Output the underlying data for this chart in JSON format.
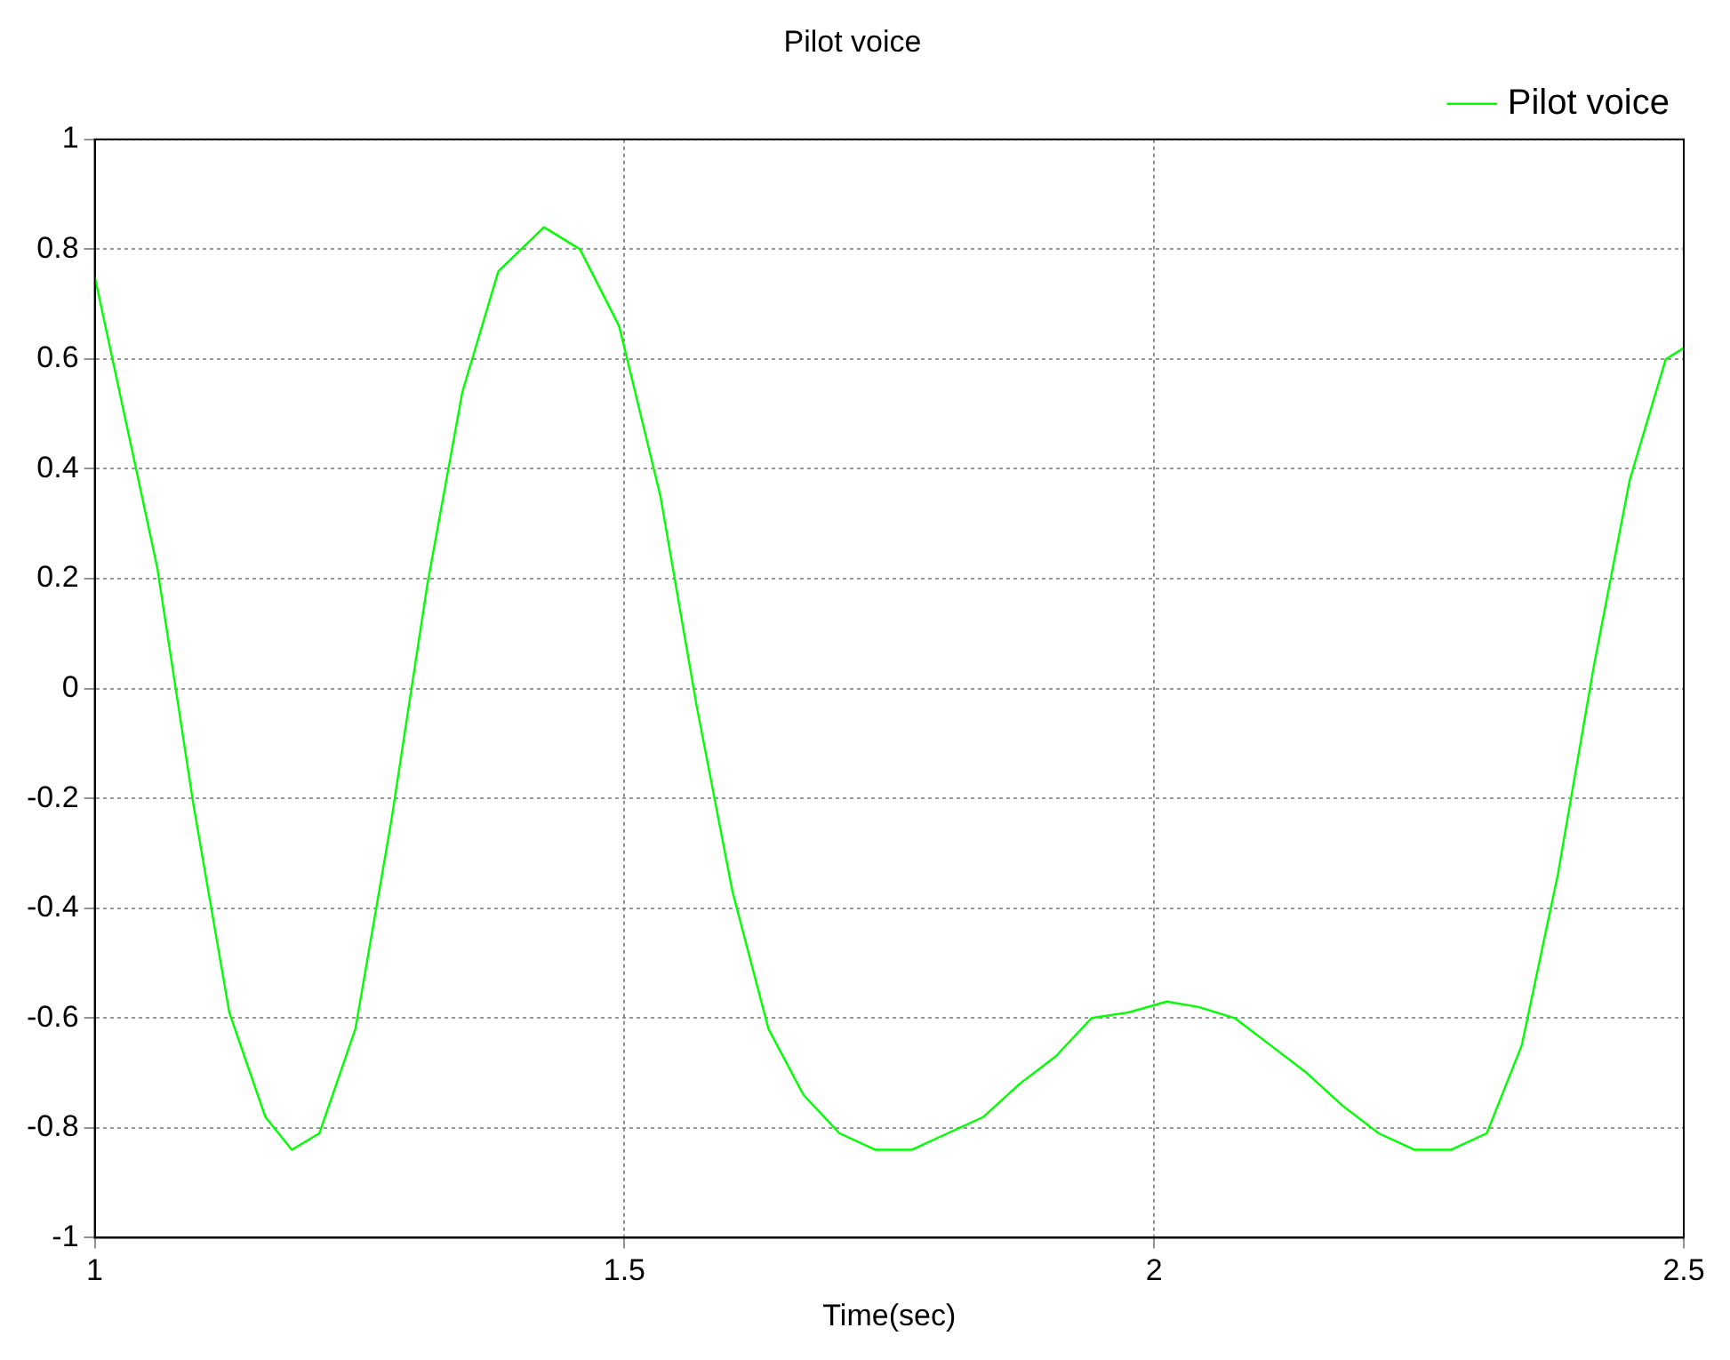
{
  "chart_data": {
    "type": "line",
    "title": "Pilot voice",
    "xlabel": "Time(sec)",
    "xlim": [
      1,
      2.5
    ],
    "xticks": [
      1,
      1.5,
      2,
      2.5
    ],
    "ylim": [
      -1,
      1
    ],
    "yticks": [
      -1,
      -0.8,
      -0.6,
      -0.4,
      -0.2,
      0,
      0.2,
      0.4,
      0.6,
      0.8,
      1
    ],
    "grid": true,
    "legend": "top right",
    "line_style": "solid",
    "marker": "none",
    "series": [
      {
        "name": "Pilot voice",
        "color": "#00ff00",
        "x": [
          1,
          1.059,
          1.093,
          1.127,
          1.161,
          1.186,
          1.212,
          1.246,
          1.28,
          1.314,
          1.347,
          1.381,
          1.424,
          1.458,
          1.495,
          1.534,
          1.568,
          1.602,
          1.636,
          1.669,
          1.703,
          1.737,
          1.771,
          1.805,
          1.839,
          1.873,
          1.907,
          1.941,
          1.975,
          2.012,
          2.042,
          2.076,
          2.11,
          2.144,
          2.178,
          2.212,
          2.246,
          2.28,
          2.314,
          2.347,
          2.381,
          2.415,
          2.449,
          2.483,
          2.5
        ],
        "values": [
          0.75,
          0.22,
          -0.21,
          -0.59,
          -0.78,
          -0.84,
          -0.81,
          -0.62,
          -0.24,
          0.19,
          0.54,
          0.76,
          0.84,
          0.8,
          0.66,
          0.35,
          -0.03,
          -0.37,
          -0.62,
          -0.74,
          -0.81,
          -0.84,
          -0.84,
          -0.81,
          -0.78,
          -0.72,
          -0.67,
          -0.6,
          -0.59,
          -0.57,
          -0.58,
          -0.6,
          -0.65,
          -0.7,
          -0.76,
          -0.81,
          -0.84,
          -0.84,
          -0.81,
          -0.65,
          -0.34,
          0.04,
          0.38,
          0.6,
          0.62
        ]
      }
    ]
  }
}
